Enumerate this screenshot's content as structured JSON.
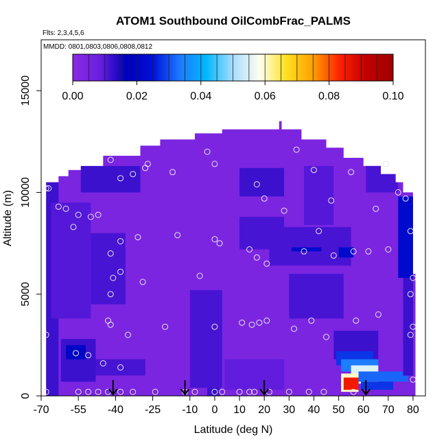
{
  "chart_data": {
    "type": "heatmap",
    "title": "ATOM1 Southbound OilCombFrac_PALMS",
    "subtitle_flights": "Flts: 2,3,4,5,6",
    "subtitle_dates": "MMDD: 0801,0803,0806,0808,0812",
    "xlabel": "Latitude (deg N)",
    "ylabel": "Altitude (m)",
    "xlim": [
      -70,
      85
    ],
    "ylim": [
      0,
      17500
    ],
    "x_ticks": [
      -70,
      -55,
      -40,
      -25,
      -10,
      0,
      10,
      20,
      30,
      40,
      50,
      60,
      70,
      80
    ],
    "y_ticks": [
      0,
      5000,
      10000,
      15000
    ],
    "colorbar": {
      "min": 0.0,
      "max": 0.1,
      "tick_values": [
        0.0,
        0.02,
        0.04,
        0.06,
        0.08,
        0.1
      ],
      "tick_labels": [
        "0.00",
        "0.02",
        "0.04",
        "0.06",
        "0.08",
        "0.10"
      ],
      "colors": [
        "#8a2be2",
        "#6a1ee0",
        "#0000b8",
        "#0010d8",
        "#1e78ff",
        "#00b8ff",
        "#a8dcff",
        "#fffff0",
        "#ffe020",
        "#ffa000",
        "#ff2000",
        "#c00000",
        "#a00000"
      ]
    },
    "grid": false,
    "background_value": 0.004,
    "regions": [
      {
        "x": [
          -68,
          -63
        ],
        "y": [
          0,
          10500
        ],
        "value": 0.012
      },
      {
        "x": [
          -66,
          -50
        ],
        "y": [
          3800,
          9500
        ],
        "value": 0.01
      },
      {
        "x": [
          -62,
          -48
        ],
        "y": [
          700,
          2800
        ],
        "value": 0.012
      },
      {
        "x": [
          -60,
          -52
        ],
        "y": [
          1800,
          2500
        ],
        "value": 0.02
      },
      {
        "x": [
          -48,
          -28
        ],
        "y": [
          1000,
          1800
        ],
        "value": 0.011
      },
      {
        "x": [
          -50,
          -36
        ],
        "y": [
          4500,
          8000
        ],
        "value": 0.011
      },
      {
        "x": [
          -54,
          -30
        ],
        "y": [
          10000,
          11300
        ],
        "value": 0.012
      },
      {
        "x": [
          -10,
          3
        ],
        "y": [
          400,
          5200
        ],
        "value": 0.011
      },
      {
        "x": [
          -3,
          2
        ],
        "y": [
          0,
          400
        ],
        "value": 0.012
      },
      {
        "x": [
          4,
          28
        ],
        "y": [
          300,
          1800
        ],
        "value": 0.009
      },
      {
        "x": [
          10,
          28
        ],
        "y": [
          7200,
          8800
        ],
        "value": 0.011
      },
      {
        "x": [
          10,
          28
        ],
        "y": [
          9800,
          11200
        ],
        "value": 0.012
      },
      {
        "x": [
          22,
          55
        ],
        "y": [
          6400,
          8300
        ],
        "value": 0.011
      },
      {
        "x": [
          31,
          43
        ],
        "y": [
          7100,
          7300
        ],
        "value": 0.022
      },
      {
        "x": [
          50,
          56
        ],
        "y": [
          6800,
          7300
        ],
        "value": 0.022
      },
      {
        "x": [
          30,
          52
        ],
        "y": [
          3800,
          6000
        ],
        "value": 0.011
      },
      {
        "x": [
          48,
          66
        ],
        "y": [
          1800,
          3200
        ],
        "value": 0.012
      },
      {
        "x": [
          49,
          64
        ],
        "y": [
          1500,
          2200
        ],
        "value": 0.028
      },
      {
        "x": [
          51,
          66
        ],
        "y": [
          1200,
          1800
        ],
        "value": 0.034
      },
      {
        "x": [
          55,
          66
        ],
        "y": [
          600,
          1500
        ],
        "value": 0.055
      },
      {
        "x": [
          51,
          58
        ],
        "y": [
          200,
          1100
        ],
        "value": 0.06
      },
      {
        "x": [
          52,
          58
        ],
        "y": [
          300,
          900
        ],
        "value": 0.085
      },
      {
        "x": [
          58,
          78
        ],
        "y": [
          700,
          1200
        ],
        "value": 0.032
      },
      {
        "x": [
          59,
          72
        ],
        "y": [
          300,
          700
        ],
        "value": 0.028
      },
      {
        "x": [
          74,
          80
        ],
        "y": [
          5800,
          9800
        ],
        "value": 0.022
      },
      {
        "x": [
          76,
          80
        ],
        "y": [
          1000,
          5800
        ],
        "value": 0.012
      },
      {
        "x": [
          61,
          74
        ],
        "y": [
          10000,
          11500
        ],
        "value": 0.011
      },
      {
        "x": [
          36,
          48
        ],
        "y": [
          8400,
          11300
        ],
        "value": 0.01
      }
    ],
    "observation_points": [
      {
        "x": -68,
        "y": 200
      },
      {
        "x": -55,
        "y": 200
      },
      {
        "x": -51,
        "y": 200
      },
      {
        "x": -47,
        "y": 200
      },
      {
        "x": -43,
        "y": 200
      },
      {
        "x": -38,
        "y": 200
      },
      {
        "x": -33,
        "y": 200
      },
      {
        "x": -24,
        "y": 200
      },
      {
        "x": -12,
        "y": 200
      },
      {
        "x": -8,
        "y": 200
      },
      {
        "x": 0,
        "y": 200
      },
      {
        "x": 3,
        "y": 200
      },
      {
        "x": 10,
        "y": 200
      },
      {
        "x": 14,
        "y": 200
      },
      {
        "x": 16,
        "y": 200
      },
      {
        "x": 22,
        "y": 200
      },
      {
        "x": 30,
        "y": 200
      },
      {
        "x": 38,
        "y": 200
      },
      {
        "x": 44,
        "y": 200
      },
      {
        "x": 56,
        "y": 200
      },
      {
        "x": 80,
        "y": 800
      },
      {
        "x": -38,
        "y": 1400
      },
      {
        "x": -45,
        "y": 1600
      },
      {
        "x": -51,
        "y": 2000
      },
      {
        "x": -56,
        "y": 2100
      },
      {
        "x": -68,
        "y": 3000
      },
      {
        "x": -42,
        "y": 3500
      },
      {
        "x": -43,
        "y": 3700
      },
      {
        "x": -35,
        "y": 3000
      },
      {
        "x": -20,
        "y": 3400
      },
      {
        "x": 0,
        "y": 3400
      },
      {
        "x": 11,
        "y": 3600
      },
      {
        "x": 15,
        "y": 3500
      },
      {
        "x": 18,
        "y": 3600
      },
      {
        "x": 21,
        "y": 3700
      },
      {
        "x": 32,
        "y": 3300
      },
      {
        "x": 39,
        "y": 3700
      },
      {
        "x": 45,
        "y": 2900
      },
      {
        "x": 57,
        "y": 3700
      },
      {
        "x": 66,
        "y": 4000
      },
      {
        "x": 79,
        "y": 3000
      },
      {
        "x": 80,
        "y": 3400
      },
      {
        "x": 79,
        "y": 5000
      },
      {
        "x": 80,
        "y": 5800
      },
      {
        "x": -42,
        "y": 5000
      },
      {
        "x": -41,
        "y": 5800
      },
      {
        "x": -38,
        "y": 6100
      },
      {
        "x": -29,
        "y": 5600
      },
      {
        "x": -6,
        "y": 5900
      },
      {
        "x": 14,
        "y": 7200
      },
      {
        "x": 17,
        "y": 6800
      },
      {
        "x": 21,
        "y": 6500
      },
      {
        "x": 36,
        "y": 7100
      },
      {
        "x": 48,
        "y": 6900
      },
      {
        "x": 56,
        "y": 7100
      },
      {
        "x": 62,
        "y": 7100
      },
      {
        "x": 70,
        "y": 7200
      },
      {
        "x": 79,
        "y": 8100
      },
      {
        "x": -42,
        "y": 7000
      },
      {
        "x": -38,
        "y": 7600
      },
      {
        "x": -31,
        "y": 7800
      },
      {
        "x": -15,
        "y": 7900
      },
      {
        "x": 0,
        "y": 7700
      },
      {
        "x": 2,
        "y": 7500
      },
      {
        "x": 42,
        "y": 8100
      },
      {
        "x": -57,
        "y": 8300
      },
      {
        "x": -63,
        "y": 9300
      },
      {
        "x": -60,
        "y": 9200
      },
      {
        "x": -55,
        "y": 8900
      },
      {
        "x": -50,
        "y": 8800
      },
      {
        "x": -47,
        "y": 8900
      },
      {
        "x": 28,
        "y": 9100
      },
      {
        "x": 65,
        "y": 9200
      },
      {
        "x": 77,
        "y": 9700
      },
      {
        "x": 20,
        "y": 9700
      },
      {
        "x": 47,
        "y": 9600
      },
      {
        "x": -68,
        "y": 10200
      },
      {
        "x": -67,
        "y": 10200
      },
      {
        "x": 17,
        "y": 10400
      },
      {
        "x": 74,
        "y": 10000
      },
      {
        "x": -42,
        "y": 11600
      },
      {
        "x": -27,
        "y": 11400
      },
      {
        "x": -38,
        "y": 10700
      },
      {
        "x": -33,
        "y": 10900
      },
      {
        "x": -28,
        "y": 11200
      },
      {
        "x": -17,
        "y": 11000
      },
      {
        "x": -3,
        "y": 12000
      },
      {
        "x": 0,
        "y": 11400
      },
      {
        "x": 33,
        "y": 12100
      },
      {
        "x": 40,
        "y": 11100
      },
      {
        "x": 55,
        "y": 11000
      },
      {
        "x": 69,
        "y": 11400
      }
    ],
    "arrow_markers": [
      {
        "x": -41,
        "y": 0
      },
      {
        "x": -12,
        "y": 0
      },
      {
        "x": 20,
        "y": 0
      },
      {
        "x": 61,
        "y": 0
      }
    ],
    "domain_outline": [
      [
        -68,
        0
      ],
      [
        -68,
        10500
      ],
      [
        -63,
        10500
      ],
      [
        -63,
        10800
      ],
      [
        -59,
        10800
      ],
      [
        -59,
        11100
      ],
      [
        -54,
        11100
      ],
      [
        -54,
        11300
      ],
      [
        -45,
        11300
      ],
      [
        -45,
        11800
      ],
      [
        -30,
        11800
      ],
      [
        -30,
        12300
      ],
      [
        -22,
        12300
      ],
      [
        -22,
        12600
      ],
      [
        -8,
        12600
      ],
      [
        -8,
        12900
      ],
      [
        3,
        12900
      ],
      [
        3,
        13100
      ],
      [
        26,
        13100
      ],
      [
        26,
        13500
      ],
      [
        27,
        13500
      ],
      [
        27,
        13100
      ],
      [
        35,
        13100
      ],
      [
        35,
        12600
      ],
      [
        45,
        12600
      ],
      [
        45,
        12200
      ],
      [
        52,
        12200
      ],
      [
        52,
        11700
      ],
      [
        60,
        11700
      ],
      [
        60,
        11300
      ],
      [
        67,
        11300
      ],
      [
        67,
        10900
      ],
      [
        73,
        10900
      ],
      [
        73,
        10500
      ],
      [
        76,
        10500
      ],
      [
        76,
        10000
      ],
      [
        80,
        10000
      ],
      [
        80,
        6000
      ],
      [
        81,
        6000
      ],
      [
        81,
        0
      ]
    ]
  }
}
